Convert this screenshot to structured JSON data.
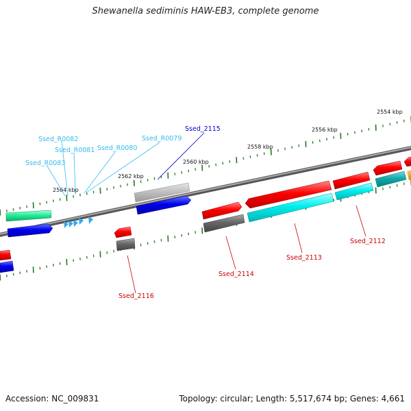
{
  "title": "Shewanella sediminis HAW-EB3, complete genome",
  "footer": {
    "accession": "Accession: NC_009831",
    "summary": "Topology: circular; Length: 5,517,674 bp; Genes: 4,661"
  },
  "kbp_labels": [
    "2554 kbp",
    "2556 kbp",
    "2558 kbp",
    "2560 kbp",
    "2562 kbp",
    "2564 kbp"
  ],
  "gene_labels": {
    "Ssed_R0082": "Ssed_R0082",
    "Ssed_R0081": "Ssed_R0081",
    "Ssed_R0080": "Ssed_R0080",
    "Ssed_R0079": "Ssed_R0079",
    "Ssed_R0083": "Ssed_R0083",
    "Ssed_2115": "Ssed_2115",
    "Ssed_2116": "Ssed_2116",
    "Ssed_2114": "Ssed_2114",
    "Ssed_2113": "Ssed_2113",
    "Ssed_2112": "Ssed_2112"
  },
  "colors": {
    "rna_label": "#33bbee",
    "blue_label": "#0000cc",
    "red_label": "#cc0000",
    "tick": "#227722",
    "backbone": "#777777"
  }
}
